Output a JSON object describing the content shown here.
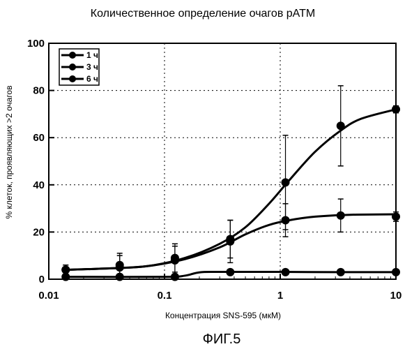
{
  "figure_caption": "ФИГ.5",
  "chart_data": {
    "type": "line",
    "title": "Количественное определение очагов pATM",
    "xlabel": "Концентрация SNS-595 (мкМ)",
    "ylabel": "% клеток, проявляющих >2 очагов",
    "x_scale": "log",
    "xlim": [
      0.01,
      10
    ],
    "ylim": [
      0,
      100
    ],
    "x_ticks": [
      0.01,
      0.1,
      1,
      10
    ],
    "x_tick_labels": [
      "0.01",
      "0.1",
      "1",
      "10"
    ],
    "y_ticks": [
      0,
      20,
      40,
      60,
      80,
      100
    ],
    "y_tick_labels": [
      "0",
      "20",
      "40",
      "60",
      "80",
      "100"
    ],
    "grid": "dotted",
    "legend_position": "top-left",
    "series": [
      {
        "name": "1 ч",
        "x": [
          0.014,
          0.041,
          0.123,
          0.37,
          1.11,
          3.33,
          10
        ],
        "y": [
          1,
          1,
          1,
          3,
          3,
          3,
          3
        ],
        "err": [
          0.5,
          0.5,
          0.5,
          1,
          1,
          1,
          1
        ],
        "fit": [
          [
            0.014,
            1
          ],
          [
            0.1,
            1
          ],
          [
            0.15,
            1.5
          ],
          [
            0.2,
            2.9
          ],
          [
            0.3,
            3.1
          ],
          [
            1,
            3.1
          ],
          [
            3,
            3.0
          ],
          [
            10,
            3.0
          ]
        ]
      },
      {
        "name": "3 ч",
        "x": [
          0.014,
          0.041,
          0.123,
          0.37,
          1.11,
          3.33,
          10
        ],
        "y": [
          4,
          5,
          8,
          16,
          25,
          27,
          26.5
        ],
        "err": [
          2,
          5,
          6,
          9,
          7,
          7,
          2
        ],
        "fit": [
          [
            0.014,
            4
          ],
          [
            0.03,
            4.5
          ],
          [
            0.07,
            5.5
          ],
          [
            0.15,
            8.5
          ],
          [
            0.3,
            13.5
          ],
          [
            0.5,
            19
          ],
          [
            0.8,
            23
          ],
          [
            1.2,
            25
          ],
          [
            2,
            26.5
          ],
          [
            4,
            27.3
          ],
          [
            10,
            27.5
          ]
        ]
      },
      {
        "name": "6 ч",
        "x": [
          0.014,
          0.041,
          0.123,
          0.37,
          1.11,
          3.33,
          10
        ],
        "y": [
          4,
          6,
          9,
          17,
          41,
          65,
          72
        ],
        "err": [
          2,
          5,
          6,
          8,
          20,
          17,
          1.5
        ],
        "fit": [
          [
            0.014,
            4
          ],
          [
            0.03,
            4.5
          ],
          [
            0.07,
            5.5
          ],
          [
            0.15,
            9
          ],
          [
            0.3,
            15
          ],
          [
            0.5,
            22
          ],
          [
            0.8,
            32
          ],
          [
            1.2,
            42
          ],
          [
            2,
            54
          ],
          [
            3.33,
            63
          ],
          [
            5,
            68
          ],
          [
            10,
            72
          ]
        ]
      }
    ]
  }
}
